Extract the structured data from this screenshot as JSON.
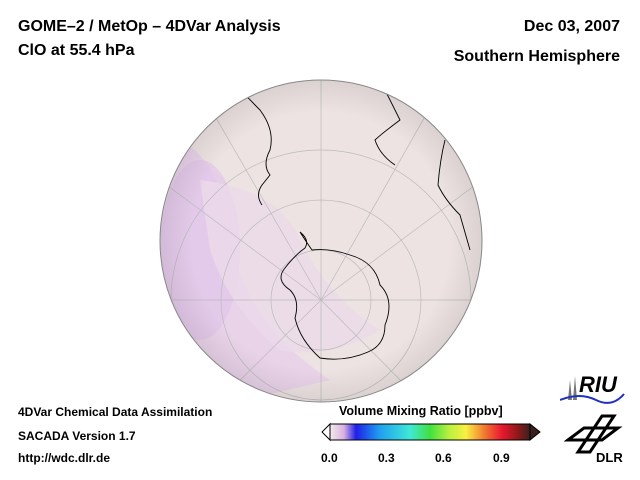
{
  "header": {
    "title": "GOME–2 / MetOp – 4DVar Analysis",
    "subtitle": "ClO at 55.4 hPa",
    "date": "Dec 03, 2007",
    "region": "Southern Hemisphere"
  },
  "footer": {
    "line1": "4DVar Chemical Data Assimilation",
    "line2": "SACADA Version 1.7",
    "url": "http://wdc.dlr.de"
  },
  "colorbar": {
    "title": "Volume Mixing Ratio [ppbv]",
    "min": 0.0,
    "max": 1.05,
    "ticks": [
      "0.0",
      "0.3",
      "0.6",
      "0.9"
    ],
    "tick_values": [
      0.0,
      0.3,
      0.6,
      0.9
    ]
  },
  "logos": {
    "riu": "RIU",
    "dlr": "DLR"
  },
  "colors": {
    "globe_fill": "#ede3e2",
    "high_region": "#e6cce8"
  }
}
